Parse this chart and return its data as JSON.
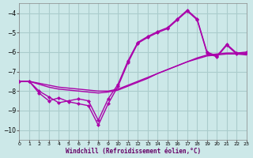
{
  "xlabel": "Windchill (Refroidissement éolien,°C)",
  "background_color": "#cce8e8",
  "grid_color": "#aacccc",
  "line_color": "#aa00aa",
  "xlim": [
    0,
    23
  ],
  "ylim": [
    -10.5,
    -3.5
  ],
  "yticks": [
    -10,
    -9,
    -8,
    -7,
    -6,
    -5,
    -4
  ],
  "xticks": [
    0,
    1,
    2,
    3,
    4,
    5,
    6,
    7,
    8,
    9,
    10,
    11,
    12,
    13,
    14,
    15,
    16,
    17,
    18,
    19,
    20,
    21,
    22,
    23
  ],
  "line_smooth1": {
    "x": [
      0,
      1,
      2,
      3,
      4,
      5,
      6,
      7,
      8,
      9,
      10,
      11,
      12,
      13,
      14,
      15,
      16,
      17,
      18,
      19,
      20,
      21,
      22,
      23
    ],
    "y": [
      -7.5,
      -7.5,
      -7.6,
      -7.7,
      -7.8,
      -7.85,
      -7.9,
      -7.95,
      -8.0,
      -8.0,
      -7.9,
      -7.7,
      -7.5,
      -7.3,
      -7.1,
      -6.9,
      -6.7,
      -6.5,
      -6.35,
      -6.2,
      -6.15,
      -6.1,
      -6.1,
      -6.15
    ],
    "marker": false
  },
  "line_smooth2": {
    "x": [
      0,
      1,
      2,
      3,
      4,
      5,
      6,
      7,
      8,
      9,
      10,
      11,
      12,
      13,
      14,
      15,
      16,
      17,
      18,
      19,
      20,
      21,
      22,
      23
    ],
    "y": [
      -7.5,
      -7.5,
      -7.65,
      -7.8,
      -7.9,
      -7.95,
      -8.0,
      -8.05,
      -8.1,
      -8.05,
      -7.95,
      -7.75,
      -7.55,
      -7.35,
      -7.1,
      -6.9,
      -6.7,
      -6.5,
      -6.3,
      -6.15,
      -6.1,
      -6.05,
      -6.05,
      -6.1
    ],
    "marker": false
  },
  "line_jagged1": {
    "x": [
      0,
      1,
      2,
      3,
      4,
      5,
      6,
      7,
      8,
      9,
      10,
      11,
      12,
      13,
      14,
      15,
      16,
      17,
      18,
      19,
      20,
      21,
      22,
      23
    ],
    "y": [
      -7.5,
      -7.5,
      -8.1,
      -8.5,
      -8.35,
      -8.55,
      -8.65,
      -8.75,
      -9.75,
      -8.65,
      -7.75,
      -6.55,
      -5.55,
      -5.25,
      -5.0,
      -4.8,
      -4.35,
      -3.9,
      -4.35,
      -6.05,
      -6.25,
      -5.65,
      -6.1,
      -6.05
    ],
    "marker": true
  },
  "line_jagged2": {
    "x": [
      0,
      1,
      2,
      3,
      4,
      5,
      6,
      7,
      8,
      9,
      10,
      11,
      12,
      13,
      14,
      15,
      16,
      17,
      18,
      19,
      20,
      21,
      22,
      23
    ],
    "y": [
      -7.5,
      -7.5,
      -8.0,
      -8.3,
      -8.6,
      -8.5,
      -8.4,
      -8.5,
      -9.5,
      -8.4,
      -7.65,
      -6.45,
      -5.5,
      -5.2,
      -4.95,
      -4.75,
      -4.3,
      -3.85,
      -4.3,
      -6.0,
      -6.2,
      -5.6,
      -6.05,
      -6.0
    ],
    "marker": true
  }
}
